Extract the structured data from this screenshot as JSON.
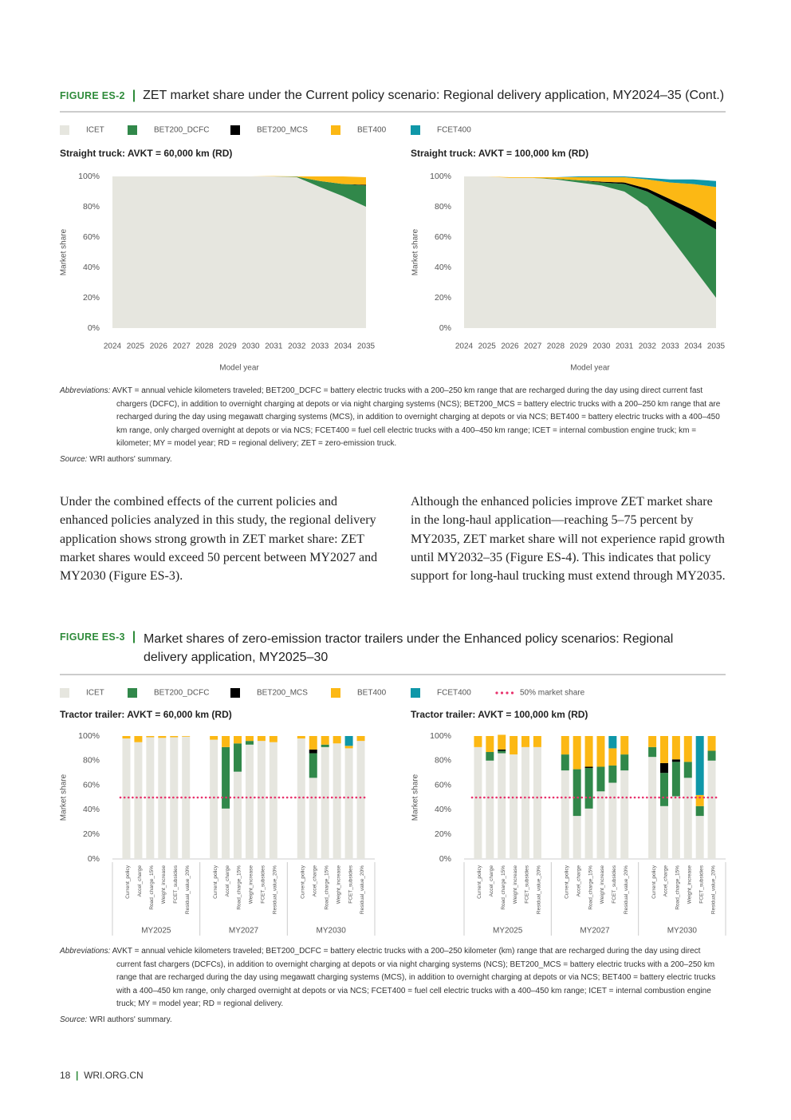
{
  "figure_es2": {
    "label": "FIGURE ES-2",
    "title": "ZET market share under the Current policy scenario: Regional delivery application, MY2024–35 (Cont.)",
    "abbreviations_label": "Abbreviations:",
    "abbreviations": "AVKT = annual vehicle kilometers traveled; BET200_DCFC = battery electric trucks with a 200–250 km range that are recharged during the day using direct current fast chargers (DCFC), in addition to overnight charging at depots or via night charging systems (NCS); BET200_MCS = battery electric trucks with a 200–250 km range that are recharged during the day using megawatt charging systems (MCS), in addition to overnight charging at depots or via NCS; BET400 = battery electric trucks with a 400–450 km range, only charged overnight at depots or via NCS; FCET400 = fuel cell electric trucks with a 400–450 km range; ICET = internal combustion engine truck; km = kilometer; MY = model year; RD = regional delivery; ZET = zero-emission truck.",
    "source_label": "Source:",
    "source": "WRI authors' summary."
  },
  "paragraphs": [
    "Under the combined effects of the current policies and enhanced policies analyzed in this study, the regional delivery application shows strong growth in ZET market share: ZET market shares would exceed 50 percent between MY2027 and MY2030 (Figure ES-3).",
    "Although the enhanced policies improve ZET market share in the long-haul application—reaching 5–75 percent by MY2035, ZET market share will not experience rapid growth until MY2032–35 (Figure ES-4). This indicates that policy support for long-haul trucking must extend through MY2035."
  ],
  "figure_es3": {
    "label": "FIGURE ES-3",
    "title": "Market shares of zero-emission tractor trailers under the Enhanced policy scenarios: Regional delivery application, MY2025–30",
    "abbreviations_label": "Abbreviations:",
    "abbreviations": "AVKT = annual vehicle kilometers traveled; BET200_DCFC = battery electric trucks with a 200–250 kilometer (km) range that are recharged during the day using direct current fast chargers (DCFCs), in addition to overnight charging at depots or via night charging systems (NCS); BET200_MCS = battery electric trucks with a 200–250 km range that are recharged during the day using megawatt charging systems (MCS), in addition to overnight charging at depots or via NCS; BET400 = battery electric trucks with a 400–450 km range, only charged overnight at depots or via NCS; FCET400 = fuel cell electric trucks with a 400–450 km range; ICET = internal combustion engine truck; MY = model year; RD = regional delivery.",
    "source_label": "Source:",
    "source": "WRI authors' summary."
  },
  "footer": {
    "page": "18",
    "site": "WRI.ORG.CN"
  },
  "chart_data": [
    {
      "type": "area",
      "title": "Straight truck: AVKT = 60,000 km (RD)",
      "xlabel": "Model year",
      "ylabel": "Market share",
      "x": [
        2024,
        2025,
        2026,
        2027,
        2028,
        2029,
        2030,
        2031,
        2032,
        2033,
        2034,
        2035
      ],
      "xlim": [
        2024,
        2035
      ],
      "xticks": [
        2024,
        2025,
        2026,
        2027,
        2028,
        2029,
        2030,
        2031,
        2032,
        2033,
        2034,
        2035
      ],
      "ylim": [
        0,
        100
      ],
      "yticks": [
        {
          "value": 0,
          "label": "0%"
        },
        {
          "value": 20,
          "label": "20%"
        },
        {
          "value": 40,
          "label": "40%"
        },
        {
          "value": 60,
          "label": "60%"
        },
        {
          "value": 80,
          "label": "80%"
        },
        {
          "value": 100,
          "label": "100%"
        }
      ],
      "series": [
        {
          "name": "ICET",
          "color": "#e6e6df",
          "values": [
            100,
            100,
            100,
            100,
            100,
            100,
            100,
            100,
            99.5,
            93,
            87,
            80
          ]
        },
        {
          "name": "BET200_DCFC",
          "color": "#31884a",
          "values": [
            0,
            0,
            0,
            0,
            0,
            0,
            0,
            0,
            0.3,
            4,
            8,
            14
          ]
        },
        {
          "name": "BET200_MCS",
          "color": "#000000",
          "values": [
            0,
            0,
            0,
            0,
            0,
            0,
            0,
            0,
            0,
            0,
            0,
            0.5
          ]
        },
        {
          "name": "BET400",
          "color": "#fcb814",
          "values": [
            0,
            0,
            0,
            0,
            0,
            0,
            0,
            0.2,
            0.2,
            3,
            5,
            5
          ]
        },
        {
          "name": "FCET400",
          "color": "#0f97a8",
          "values": [
            0,
            0,
            0,
            0,
            0,
            0,
            0,
            0,
            0,
            0,
            0,
            0
          ]
        }
      ]
    },
    {
      "type": "area",
      "title": "Straight truck: AVKT = 100,000 km (RD)",
      "xlabel": "Model year",
      "ylabel": "Market share",
      "x": [
        2024,
        2025,
        2026,
        2027,
        2028,
        2029,
        2030,
        2031,
        2032,
        2033,
        2034,
        2035
      ],
      "xlim": [
        2024,
        2035
      ],
      "xticks": [
        2024,
        2025,
        2026,
        2027,
        2028,
        2029,
        2030,
        2031,
        2032,
        2033,
        2034,
        2035
      ],
      "ylim": [
        0,
        100
      ],
      "yticks": [
        {
          "value": 0,
          "label": "0%"
        },
        {
          "value": 20,
          "label": "20%"
        },
        {
          "value": 40,
          "label": "40%"
        },
        {
          "value": 60,
          "label": "60%"
        },
        {
          "value": 80,
          "label": "80%"
        },
        {
          "value": 100,
          "label": "100%"
        }
      ],
      "series": [
        {
          "name": "ICET",
          "color": "#e6e6df",
          "values": [
            100,
            100,
            99,
            99,
            98,
            96,
            94,
            90,
            80,
            60,
            40,
            20
          ]
        },
        {
          "name": "BET200_DCFC",
          "color": "#31884a",
          "values": [
            0,
            0,
            0,
            0,
            0.5,
            1.5,
            2,
            5,
            10,
            22,
            34,
            45
          ]
        },
        {
          "name": "BET200_MCS",
          "color": "#000000",
          "values": [
            0,
            0,
            0,
            0,
            0,
            0,
            0.5,
            1,
            2,
            3,
            4,
            5
          ]
        },
        {
          "name": "BET400",
          "color": "#fcb814",
          "values": [
            0,
            0,
            0.5,
            0.5,
            1,
            2,
            3,
            3.5,
            6,
            11,
            17,
            23
          ]
        },
        {
          "name": "FCET400",
          "color": "#0f97a8",
          "values": [
            0,
            0,
            0,
            0,
            0,
            0.5,
            0.5,
            0.5,
            1,
            2,
            3,
            4
          ]
        }
      ]
    },
    {
      "type": "stacked_bar",
      "title": "Tractor trailer: AVKT = 60,000 km (RD)",
      "ylabel": "Market share",
      "categories": [
        "Current_policy",
        "Accel_charge",
        "Road_charge_15%",
        "Weight_increase",
        "FCET_subsidies",
        "Residual_value_20%",
        "Current_policy",
        "Accel_charge",
        "Road_charge_15%",
        "Weight_increase",
        "FCET_subsidies",
        "Residual_value_20%",
        "Current_policy",
        "Accel_charge",
        "Road_charge_15%",
        "Weight_increase",
        "FCET_subsidies",
        "Residual_value_20%"
      ],
      "groups": [
        "MY2025",
        "MY2027",
        "MY2030"
      ],
      "ylim": [
        0,
        100
      ],
      "yticks": [
        {
          "value": 0,
          "label": "0%"
        },
        {
          "value": 20,
          "label": "20%"
        },
        {
          "value": 40,
          "label": "40%"
        },
        {
          "value": 60,
          "label": "60%"
        },
        {
          "value": 80,
          "label": "80%"
        },
        {
          "value": 100,
          "label": "100%"
        }
      ],
      "reference_line": {
        "value": 50,
        "label": "50% market share",
        "color": "#e8336d"
      },
      "series": [
        {
          "name": "ICET",
          "color": "#e6e6df",
          "values": [
            98,
            95,
            99,
            98.5,
            99,
            99.5,
            97,
            41,
            71,
            93,
            96,
            95,
            98,
            66,
            91,
            94,
            90,
            96
          ]
        },
        {
          "name": "BET200_DCFC",
          "color": "#31884a",
          "values": [
            0,
            0,
            0,
            0,
            0,
            0,
            0,
            50,
            23,
            3,
            0,
            0,
            0,
            20,
            2,
            0,
            0,
            0
          ]
        },
        {
          "name": "BET200_MCS",
          "color": "#000000",
          "values": [
            0,
            0,
            0,
            0,
            0,
            0,
            0,
            0,
            0,
            0,
            0,
            0,
            0,
            3,
            0,
            0,
            0,
            0
          ]
        },
        {
          "name": "BET400",
          "color": "#fcb814",
          "values": [
            2,
            5,
            1,
            1.5,
            1,
            0.5,
            3,
            9,
            6,
            4,
            4,
            5,
            2,
            11,
            7,
            6,
            2,
            4
          ]
        },
        {
          "name": "FCET400",
          "color": "#0f97a8",
          "values": [
            0,
            0,
            0,
            0,
            0,
            0,
            0,
            0,
            0,
            0,
            0,
            0,
            0,
            0,
            0,
            0,
            8,
            0
          ]
        }
      ]
    },
    {
      "type": "stacked_bar",
      "title": "Tractor trailer: AVKT = 100,000 km (RD)",
      "ylabel": "Market share",
      "categories": [
        "Current_policy",
        "Accel_charge",
        "Road_charge_15%",
        "Weight_increase",
        "FCET_subsidies",
        "Residual_value_20%",
        "Current_policy",
        "Accel_charge",
        "Road_charge_15%",
        "Weight_increase",
        "FCET_subsidies",
        "Residual_value_20%",
        "Current_policy",
        "Accel_charge",
        "Road_charge_15%",
        "Weight_increase",
        "FCET_subsidies",
        "Residual_value_20%"
      ],
      "groups": [
        "MY2025",
        "MY2027",
        "MY2030"
      ],
      "ylim": [
        0,
        100
      ],
      "yticks": [
        {
          "value": 0,
          "label": "0%"
        },
        {
          "value": 20,
          "label": "20%"
        },
        {
          "value": 40,
          "label": "40%"
        },
        {
          "value": 60,
          "label": "60%"
        },
        {
          "value": 80,
          "label": "80%"
        },
        {
          "value": 100,
          "label": "100%"
        }
      ],
      "reference_line": {
        "value": 50,
        "color": "#e8336d"
      },
      "series": [
        {
          "name": "ICET",
          "color": "#e6e6df",
          "values": [
            91,
            80,
            86,
            85,
            91,
            91,
            72,
            35,
            41,
            55,
            62,
            72,
            83,
            43,
            51,
            66,
            35,
            80
          ]
        },
        {
          "name": "BET200_DCFC",
          "color": "#31884a",
          "values": [
            0,
            7,
            2,
            0,
            0,
            0,
            13,
            38,
            33,
            20,
            14,
            13,
            8,
            27,
            28,
            13,
            8,
            8
          ]
        },
        {
          "name": "BET200_MCS",
          "color": "#000000",
          "values": [
            0,
            0,
            1,
            0,
            0,
            0,
            0,
            0,
            1,
            0,
            0,
            0,
            0,
            8,
            2,
            0,
            0,
            0
          ]
        },
        {
          "name": "BET400",
          "color": "#fcb814",
          "values": [
            9,
            13,
            12,
            15,
            9,
            9,
            15,
            27,
            25,
            25,
            14,
            15,
            9,
            22,
            19,
            21,
            9,
            12
          ]
        },
        {
          "name": "FCET400",
          "color": "#0f97a8",
          "values": [
            0,
            0,
            0,
            0,
            0,
            0,
            0,
            0,
            0,
            0,
            10,
            0,
            0,
            0,
            0,
            0,
            48,
            0
          ]
        }
      ]
    }
  ]
}
